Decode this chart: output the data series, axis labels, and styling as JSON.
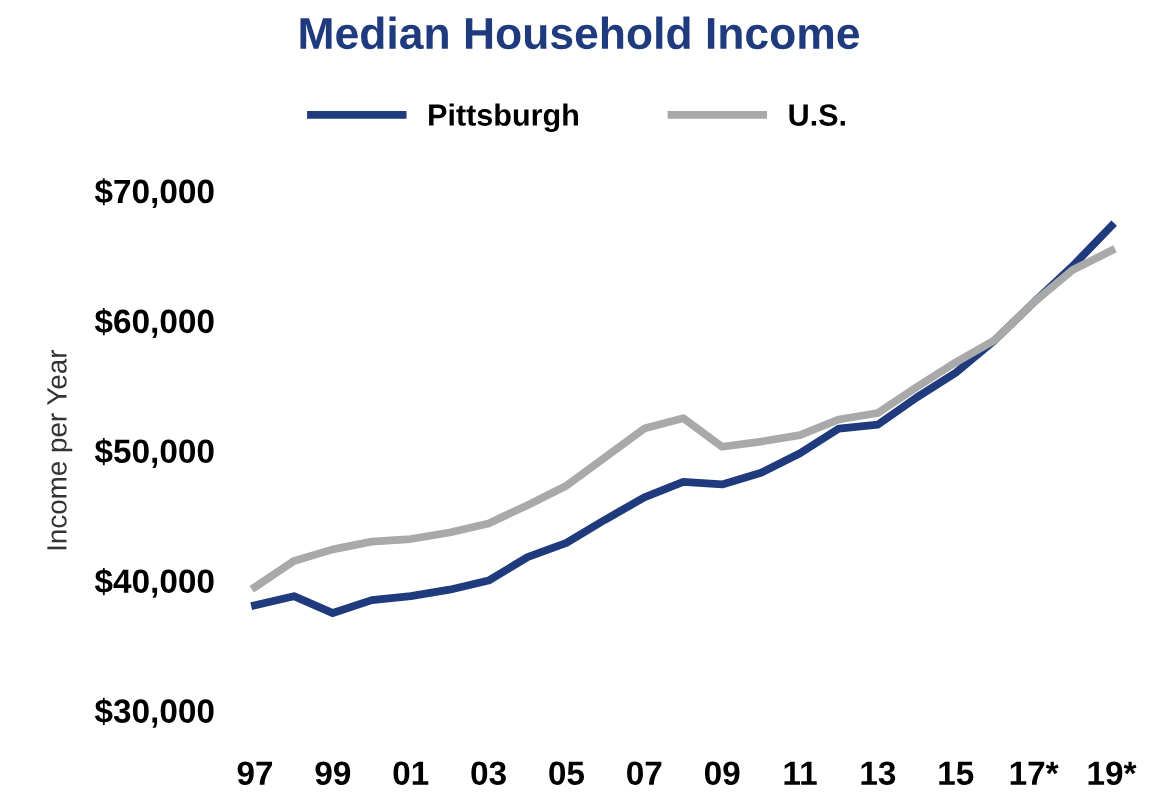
{
  "chart_data": {
    "type": "line",
    "title": "Median Household Income",
    "ylabel": "Income per Year",
    "categories": [
      "97",
      null,
      "99",
      null,
      "01",
      null,
      "03",
      null,
      "05",
      null,
      "07",
      null,
      "09",
      null,
      "11",
      null,
      "13",
      null,
      "15",
      null,
      "17*",
      null,
      "19*"
    ],
    "series": [
      {
        "name": "Pittsburgh",
        "color": "#1f3b7d",
        "values": [
          38100,
          38800,
          37500,
          38500,
          38800,
          39300,
          40000,
          41800,
          42900,
          44700,
          46400,
          47600,
          47400,
          48300,
          49800,
          51700,
          52000,
          54100,
          56000,
          58500,
          61400,
          64200,
          67300
        ]
      },
      {
        "name": "U.S.",
        "color": "#a9a9a9",
        "values": [
          39500,
          41500,
          42400,
          43000,
          43200,
          43700,
          44400,
          45800,
          47300,
          49500,
          51700,
          52500,
          50300,
          50700,
          51200,
          52400,
          52900,
          54900,
          56800,
          58500,
          61400,
          63900,
          65400
        ]
      }
    ],
    "ylim": [
      30000,
      70000
    ],
    "yticks": [
      {
        "value": 30000,
        "label": "$30,000"
      },
      {
        "value": 40000,
        "label": "$40,000"
      },
      {
        "value": 50000,
        "label": "$50,000"
      },
      {
        "value": 60000,
        "label": "$60,000"
      },
      {
        "value": 70000,
        "label": "$70,000"
      }
    ],
    "grid": false,
    "legend": "top",
    "marker": "none",
    "line_style": "solid"
  }
}
